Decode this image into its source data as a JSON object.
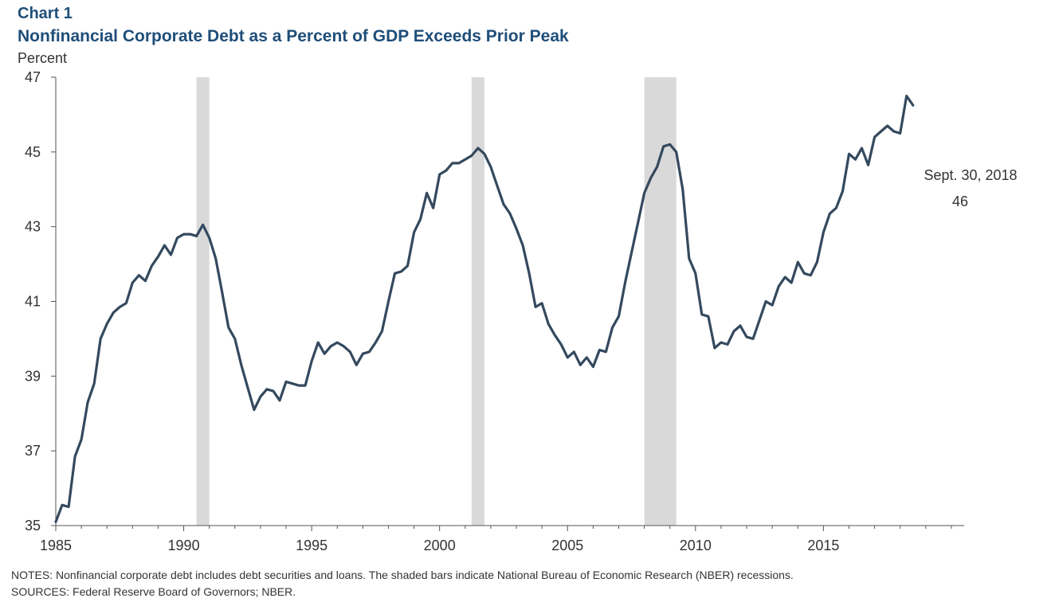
{
  "header": {
    "label": "Chart 1",
    "title": "Nonfinancial Corporate Debt as a Percent of GDP Exceeds Prior Peak",
    "y_unit": "Percent"
  },
  "footer": {
    "notes": "NOTES: Nonfinancial corporate debt includes debt securities and loans. The shaded bars indicate National Bureau of Economic Research (NBER) recessions.",
    "sources": "SOURCES: Federal Reserve Board of Governors; NBER."
  },
  "colors": {
    "line": "#34495e",
    "recession": "#d9d9d9",
    "title": "#1f4e79",
    "axis": "#555555",
    "text": "#333333"
  },
  "chart_data": {
    "type": "line",
    "title": "Nonfinancial Corporate Debt as a Percent of GDP Exceeds Prior Peak",
    "ylabel": "Percent",
    "xlabel": "",
    "xlim": [
      1985,
      2020.5
    ],
    "ylim": [
      35,
      47
    ],
    "x_ticks": [
      1985,
      1990,
      1995,
      2000,
      2005,
      2010,
      2015
    ],
    "y_ticks": [
      35,
      37,
      39,
      41,
      43,
      45,
      47
    ],
    "grid": false,
    "legend": "none",
    "recessions": [
      [
        1990.5,
        1991.0
      ],
      [
        2001.25,
        2001.75
      ],
      [
        2008.0,
        2009.25
      ]
    ],
    "annotation": {
      "label": "Sept. 30, 2018",
      "value": "46"
    },
    "series": [
      {
        "x": [
          1985.0,
          1985.25,
          1985.5,
          1985.75,
          1986.0,
          1986.25,
          1986.5,
          1986.75,
          1987.0,
          1987.25,
          1987.5,
          1987.75,
          1988.0,
          1988.25,
          1988.5,
          1988.75,
          1989.0,
          1989.25,
          1989.5,
          1989.75,
          1990.0,
          1990.25,
          1990.5,
          1990.75,
          1991.0,
          1991.25,
          1991.5,
          1991.75,
          1992.0,
          1992.25,
          1992.5,
          1992.75,
          1993.0,
          1993.25,
          1993.5,
          1993.75,
          1994.0,
          1994.25,
          1994.5,
          1994.75,
          1995.0,
          1995.25,
          1995.5,
          1995.75,
          1996.0,
          1996.25,
          1996.5,
          1996.75,
          1997.0,
          1997.25,
          1997.5,
          1997.75,
          1998.0,
          1998.25,
          1998.5,
          1998.75,
          1999.0,
          1999.25,
          1999.5,
          1999.75,
          2000.0,
          2000.25,
          2000.5,
          2000.75,
          2001.0,
          2001.25,
          2001.5,
          2001.75,
          2002.0,
          2002.25,
          2002.5,
          2002.75,
          2003.0,
          2003.25,
          2003.5,
          2003.75,
          2004.0,
          2004.25,
          2004.5,
          2004.75,
          2005.0,
          2005.25,
          2005.5,
          2005.75,
          2006.0,
          2006.25,
          2006.5,
          2006.75,
          2007.0,
          2007.25,
          2007.5,
          2007.75,
          2008.0,
          2008.25,
          2008.5,
          2008.75,
          2009.0,
          2009.25,
          2009.5,
          2009.75,
          2010.0,
          2010.25,
          2010.5,
          2010.75,
          2011.0,
          2011.25,
          2011.5,
          2011.75,
          2012.0,
          2012.25,
          2012.5,
          2012.75,
          2013.0,
          2013.25,
          2013.5,
          2013.75,
          2014.0,
          2014.25,
          2014.5,
          2014.75,
          2015.0,
          2015.25,
          2015.5,
          2015.75,
          2016.0,
          2016.25,
          2016.5,
          2016.75,
          2017.0,
          2017.25,
          2017.5,
          2017.75,
          2018.0,
          2018.25,
          2018.5
        ],
        "values": [
          35.1,
          35.55,
          35.5,
          36.85,
          37.3,
          38.3,
          38.8,
          40.0,
          40.4,
          40.7,
          40.85,
          40.95,
          41.5,
          41.7,
          41.55,
          41.95,
          42.2,
          42.5,
          42.25,
          42.7,
          42.8,
          42.8,
          42.75,
          43.05,
          42.7,
          42.15,
          41.25,
          40.3,
          40.0,
          39.3,
          38.7,
          38.1,
          38.45,
          38.65,
          38.6,
          38.35,
          38.85,
          38.8,
          38.75,
          38.75,
          39.4,
          39.9,
          39.6,
          39.8,
          39.9,
          39.8,
          39.65,
          39.3,
          39.6,
          39.65,
          39.9,
          40.2,
          41.0,
          41.75,
          41.8,
          41.95,
          42.85,
          43.2,
          43.9,
          43.5,
          44.4,
          44.5,
          44.7,
          44.7,
          44.8,
          44.9,
          45.1,
          44.95,
          44.6,
          44.1,
          43.6,
          43.35,
          42.95,
          42.5,
          41.75,
          40.85,
          40.95,
          40.4,
          40.1,
          39.85,
          39.5,
          39.65,
          39.3,
          39.5,
          39.25,
          39.7,
          39.65,
          40.3,
          40.6,
          41.5,
          42.3,
          43.1,
          43.9,
          44.3,
          44.6,
          45.15,
          45.2,
          45.0,
          44.0,
          42.15,
          41.75,
          40.65,
          40.6,
          39.75,
          39.9,
          39.85,
          40.2,
          40.35,
          40.05,
          40.0,
          40.5,
          41.0,
          40.9,
          41.4,
          41.65,
          41.5,
          42.05,
          41.75,
          41.7,
          42.05,
          42.85,
          43.35,
          43.5,
          43.95,
          44.95,
          44.8,
          45.1,
          44.65,
          45.4,
          45.55,
          45.7,
          45.55,
          45.5,
          46.5,
          46.25
        ]
      }
    ]
  }
}
